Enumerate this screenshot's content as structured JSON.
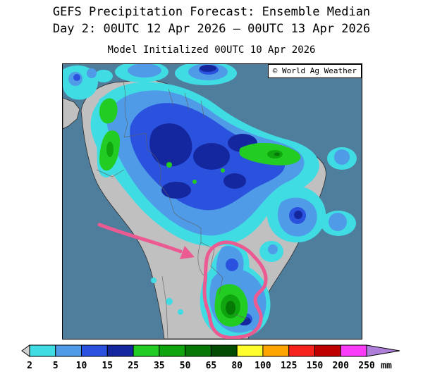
{
  "header": {
    "title": "GEFS Precipitation Forecast: Ensemble Median",
    "subtitle": "Day 2: 00UTC 12 Apr 2026 — 00UTC 13 Apr 2026",
    "initialized": "Model Initialized 00UTC 10 Apr 2026"
  },
  "map": {
    "credit": "© World Ag Weather",
    "colors": {
      "ocean": "#4F7E9C",
      "land": "#C0C0C0",
      "annotation": "#EC5A92"
    }
  },
  "legend": {
    "units": "mm",
    "ticks": [
      "2",
      "5",
      "10",
      "15",
      "25",
      "35",
      "50",
      "65",
      "80",
      "100",
      "125",
      "150",
      "200",
      "250"
    ],
    "below_min_color": "#D2D2D2",
    "above_max_color": "#AE7FD9",
    "colors": [
      "#3FDCE4",
      "#4F9BE8",
      "#2A52DE",
      "#15279E",
      "#23CC23",
      "#0FA50F",
      "#067806",
      "#024B02",
      "#FFFF2E",
      "#FFA500",
      "#F5231C",
      "#BE0000",
      "#FA3CFA"
    ]
  }
}
